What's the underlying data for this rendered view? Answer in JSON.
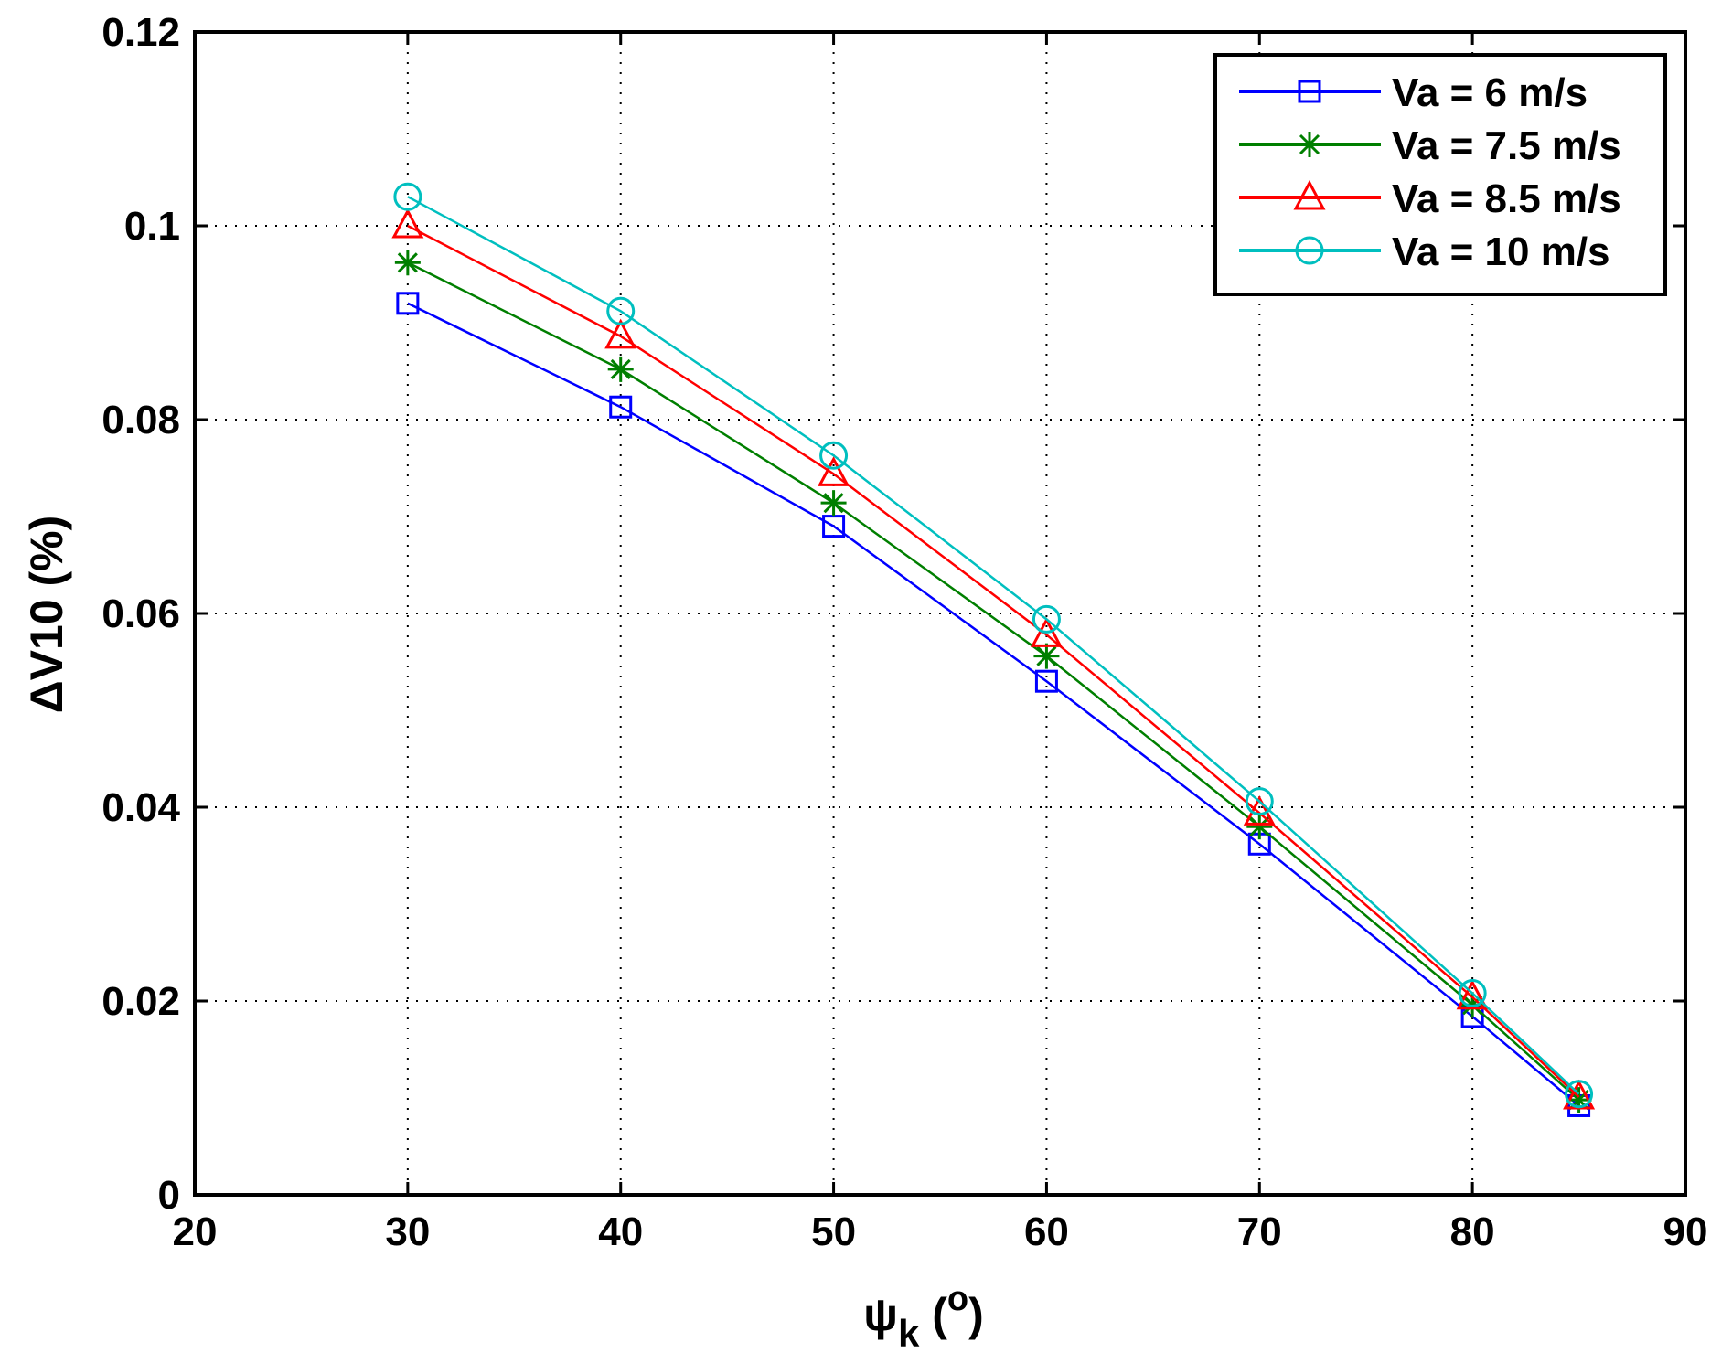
{
  "chart_data": {
    "type": "line",
    "title": "",
    "xlabel": "ψk (o)",
    "xlabel_parts": {
      "symbol": "ψ",
      "subscript": "k",
      "open": " (",
      "superscript": "o",
      "close": ")"
    },
    "ylabel": "ΔV10 (%)",
    "xlim": [
      20,
      90
    ],
    "ylim": [
      0,
      0.12
    ],
    "xticks": [
      20,
      30,
      40,
      50,
      60,
      70,
      80,
      90
    ],
    "xtick_labels": [
      "20",
      "30",
      "40",
      "50",
      "60",
      "70",
      "80",
      "90"
    ],
    "yticks": [
      0,
      0.02,
      0.04,
      0.06,
      0.08,
      0.1,
      0.12
    ],
    "ytick_labels": [
      "0",
      "0.02",
      "0.04",
      "0.06",
      "0.08",
      "0.1",
      "0.12"
    ],
    "grid": true,
    "legend_position": "top-right",
    "x": [
      30,
      40,
      50,
      60,
      70,
      80,
      85
    ],
    "series": [
      {
        "name": "Va = 6 m/s",
        "color": "#0000ff",
        "marker": "square",
        "values": [
          0.092,
          0.0813,
          0.069,
          0.053,
          0.0362,
          0.0184,
          0.0092
        ]
      },
      {
        "name": "Va = 7.5 m/s",
        "color": "#007f00",
        "marker": "star",
        "values": [
          0.0962,
          0.0852,
          0.0714,
          0.0556,
          0.038,
          0.0196,
          0.0098
        ]
      },
      {
        "name": "Va = 8.5 m/s",
        "color": "#ff0000",
        "marker": "triangle",
        "values": [
          0.1,
          0.0886,
          0.0744,
          0.0578,
          0.0394,
          0.0204,
          0.0101
        ]
      },
      {
        "name": "Va = 10 m/s",
        "color": "#00bfbf",
        "marker": "circle",
        "values": [
          0.103,
          0.0912,
          0.0763,
          0.0594,
          0.0406,
          0.0208,
          0.0104
        ]
      }
    ]
  }
}
